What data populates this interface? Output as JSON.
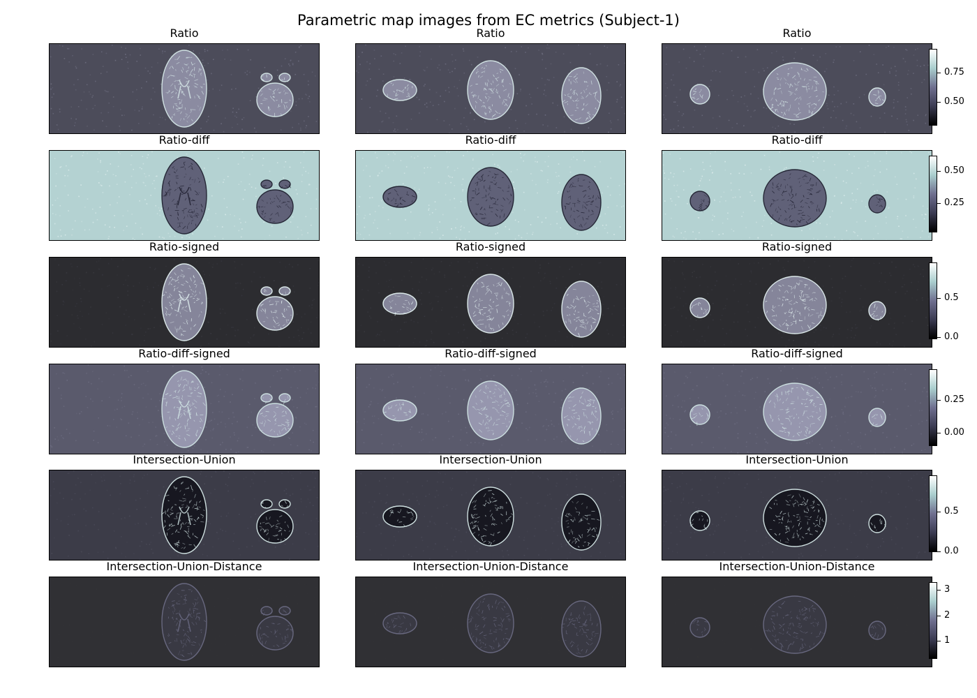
{
  "figure": {
    "title": "Parametric map images from EC metrics (Subject-1)"
  },
  "colormap": [
    "#000000",
    "#3b3b52",
    "#6f6f8f",
    "#a9cdcd",
    "#ffffff"
  ],
  "rows": [
    {
      "title": "Ratio",
      "bg": "#4c4c5a",
      "noise": "#6a6a7c",
      "tissue": "#8f8fa5",
      "edge": "#d8eaea",
      "colorbar": {
        "ticks": [
          "0.75",
          "0.50"
        ],
        "tick_values": [
          0.75,
          0.5
        ],
        "vmin": 0.3,
        "vmax": 0.95
      }
    },
    {
      "title": "Ratio-diff",
      "bg": "#b4d2d2",
      "noise": "#d6e8e8",
      "tissue": "#5c5c74",
      "edge": "#1e1e2e",
      "colorbar": {
        "ticks": [
          "0.50",
          "0.25"
        ],
        "tick_values": [
          0.5,
          0.25
        ],
        "vmin": 0.02,
        "vmax": 0.62
      }
    },
    {
      "title": "Ratio-signed",
      "bg": "#2c2c30",
      "noise": "#38383f",
      "tissue": "#8a8aa0",
      "edge": "#e4f2f2",
      "colorbar": {
        "ticks": [
          "0.5",
          "0.0"
        ],
        "tick_values": [
          0.5,
          0.0
        ],
        "vmin": -0.03,
        "vmax": 0.95
      }
    },
    {
      "title": "Ratio-diff-signed",
      "bg": "#5a5a6c",
      "noise": "#6c6c80",
      "tissue": "#9a9ab2",
      "edge": "#d2e6e6",
      "colorbar": {
        "ticks": [
          "0.25",
          "0.00"
        ],
        "tick_values": [
          0.25,
          0.0
        ],
        "vmin": -0.1,
        "vmax": 0.48
      }
    },
    {
      "title": "Intersection-Union",
      "bg": "#3c3c48",
      "noise": "#4a4a58",
      "tissue": "#16161e",
      "edge": "#d6e8e8",
      "colorbar": {
        "ticks": [
          "0.5",
          "0.0"
        ],
        "tick_values": [
          0.5,
          0.0
        ],
        "vmin": -0.01,
        "vmax": 0.95
      }
    },
    {
      "title": "Intersection-Union-Distance",
      "bg": "#303034",
      "noise": "#323236",
      "tissue": "#3a3a44",
      "edge": "#6c6c84",
      "colorbar": {
        "ticks": [
          "3",
          "2",
          "1"
        ],
        "tick_values": [
          3,
          2,
          1
        ],
        "vmin": 0.3,
        "vmax": 3.3
      }
    }
  ]
}
